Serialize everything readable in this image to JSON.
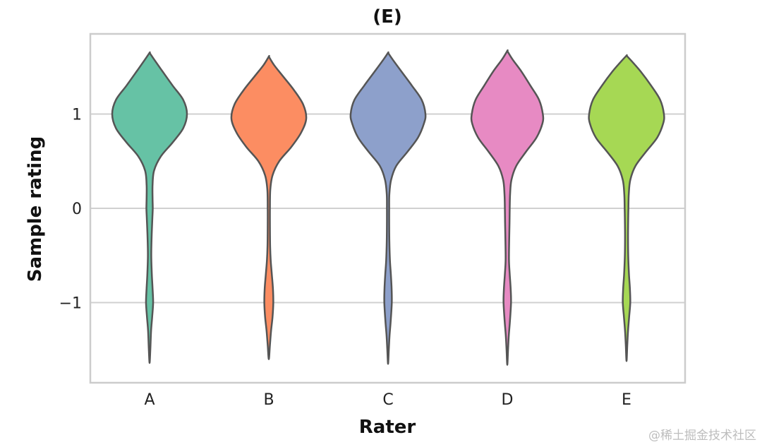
{
  "chart_data": {
    "type": "violin",
    "title": "(E)",
    "xlabel": "Rater",
    "ylabel": "Sample rating",
    "categories": [
      "A",
      "B",
      "C",
      "D",
      "E"
    ],
    "ylim": [
      -1.85,
      1.85
    ],
    "yticks": [
      1,
      0,
      -1
    ],
    "ytick_labels": [
      "1",
      "0",
      "−1"
    ],
    "grid": true,
    "series": [
      {
        "name": "A",
        "color": "#66c2a5",
        "min": -1.64,
        "max": 1.65,
        "density": [
          [
            -1.64,
            0.0
          ],
          [
            -1.5,
            0.02
          ],
          [
            -1.3,
            0.04
          ],
          [
            -1.15,
            0.07
          ],
          [
            -1.0,
            0.095
          ],
          [
            -0.85,
            0.08
          ],
          [
            -0.7,
            0.06
          ],
          [
            -0.5,
            0.045
          ],
          [
            -0.3,
            0.055
          ],
          [
            -0.1,
            0.075
          ],
          [
            0.0,
            0.085
          ],
          [
            0.1,
            0.08
          ],
          [
            0.25,
            0.08
          ],
          [
            0.4,
            0.12
          ],
          [
            0.55,
            0.3
          ],
          [
            0.7,
            0.62
          ],
          [
            0.85,
            0.9
          ],
          [
            1.0,
            1.0
          ],
          [
            1.15,
            0.9
          ],
          [
            1.3,
            0.62
          ],
          [
            1.45,
            0.35
          ],
          [
            1.58,
            0.12
          ],
          [
            1.65,
            0.0
          ]
        ]
      },
      {
        "name": "B",
        "color": "#fc8d62",
        "min": -1.6,
        "max": 1.61,
        "density": [
          [
            -1.6,
            0.0
          ],
          [
            -1.45,
            0.03
          ],
          [
            -1.3,
            0.06
          ],
          [
            -1.15,
            0.1
          ],
          [
            -1.0,
            0.12
          ],
          [
            -0.85,
            0.11
          ],
          [
            -0.7,
            0.08
          ],
          [
            -0.55,
            0.05
          ],
          [
            -0.4,
            0.035
          ],
          [
            -0.2,
            0.03
          ],
          [
            0.0,
            0.03
          ],
          [
            0.2,
            0.04
          ],
          [
            0.35,
            0.1
          ],
          [
            0.5,
            0.28
          ],
          [
            0.65,
            0.6
          ],
          [
            0.8,
            0.86
          ],
          [
            0.95,
            1.0
          ],
          [
            1.1,
            0.92
          ],
          [
            1.25,
            0.68
          ],
          [
            1.4,
            0.38
          ],
          [
            1.52,
            0.14
          ],
          [
            1.61,
            0.0
          ]
        ]
      },
      {
        "name": "C",
        "color": "#8da0cb",
        "min": -1.65,
        "max": 1.65,
        "density": [
          [
            -1.65,
            0.0
          ],
          [
            -1.5,
            0.02
          ],
          [
            -1.35,
            0.04
          ],
          [
            -1.2,
            0.07
          ],
          [
            -1.0,
            0.1
          ],
          [
            -0.85,
            0.095
          ],
          [
            -0.7,
            0.075
          ],
          [
            -0.55,
            0.05
          ],
          [
            -0.35,
            0.035
          ],
          [
            -0.15,
            0.03
          ],
          [
            0.0,
            0.03
          ],
          [
            0.15,
            0.035
          ],
          [
            0.3,
            0.08
          ],
          [
            0.45,
            0.22
          ],
          [
            0.6,
            0.52
          ],
          [
            0.75,
            0.8
          ],
          [
            0.9,
            0.96
          ],
          [
            1.0,
            1.0
          ],
          [
            1.15,
            0.9
          ],
          [
            1.3,
            0.64
          ],
          [
            1.45,
            0.36
          ],
          [
            1.58,
            0.12
          ],
          [
            1.65,
            0.0
          ]
        ]
      },
      {
        "name": "D",
        "color": "#e78ac3",
        "min": -1.66,
        "max": 1.67,
        "density": [
          [
            -1.66,
            0.0
          ],
          [
            -1.5,
            0.02
          ],
          [
            -1.35,
            0.04
          ],
          [
            -1.2,
            0.07
          ],
          [
            -1.0,
            0.1
          ],
          [
            -0.85,
            0.09
          ],
          [
            -0.7,
            0.065
          ],
          [
            -0.55,
            0.045
          ],
          [
            -0.35,
            0.05
          ],
          [
            -0.15,
            0.06
          ],
          [
            0.0,
            0.065
          ],
          [
            0.15,
            0.075
          ],
          [
            0.3,
            0.11
          ],
          [
            0.45,
            0.24
          ],
          [
            0.6,
            0.5
          ],
          [
            0.75,
            0.78
          ],
          [
            0.9,
            0.94
          ],
          [
            1.0,
            0.95
          ],
          [
            1.15,
            0.85
          ],
          [
            1.3,
            0.62
          ],
          [
            1.45,
            0.38
          ],
          [
            1.58,
            0.14
          ],
          [
            1.67,
            0.0
          ]
        ]
      },
      {
        "name": "E",
        "color": "#a6d854",
        "min": -1.62,
        "max": 1.62,
        "density": [
          [
            -1.62,
            0.0
          ],
          [
            -1.45,
            0.02
          ],
          [
            -1.3,
            0.04
          ],
          [
            -1.15,
            0.07
          ],
          [
            -1.0,
            0.1
          ],
          [
            -0.85,
            0.09
          ],
          [
            -0.7,
            0.065
          ],
          [
            -0.5,
            0.045
          ],
          [
            -0.3,
            0.04
          ],
          [
            -0.1,
            0.045
          ],
          [
            0.0,
            0.05
          ],
          [
            0.15,
            0.06
          ],
          [
            0.3,
            0.1
          ],
          [
            0.45,
            0.24
          ],
          [
            0.6,
            0.52
          ],
          [
            0.75,
            0.82
          ],
          [
            0.9,
            0.98
          ],
          [
            1.0,
            1.0
          ],
          [
            1.15,
            0.9
          ],
          [
            1.3,
            0.66
          ],
          [
            1.45,
            0.38
          ],
          [
            1.56,
            0.14
          ],
          [
            1.62,
            0.0
          ]
        ]
      }
    ]
  },
  "watermark": "@稀土掘金技术社区"
}
